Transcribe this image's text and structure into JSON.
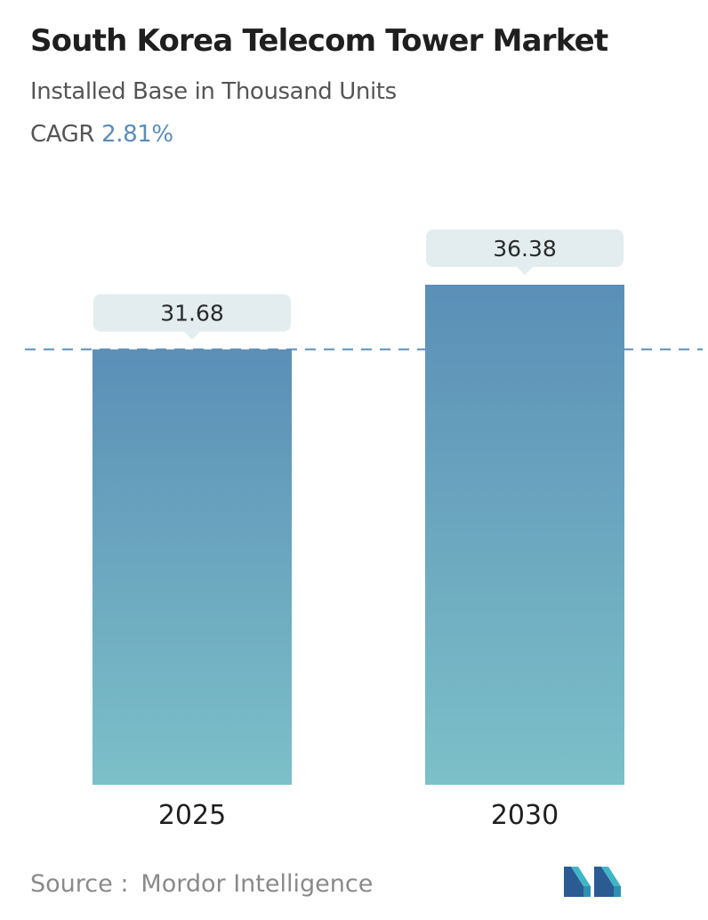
{
  "header": {
    "title": "South Korea Telecom Tower Market",
    "subtitle": "Installed Base in Thousand Units",
    "cagr_label": "CAGR",
    "cagr_value": "2.81%"
  },
  "colors": {
    "bar_top": "#5b8fb7",
    "bar_bottom": "#7cc0c8",
    "callout_bg": "#e3ecef",
    "dashed_line": "#5b8db8",
    "cagr_accent": "#5b8db8"
  },
  "chart_data": {
    "type": "bar",
    "categories": [
      "2025",
      "2030"
    ],
    "values": [
      31.68,
      36.38
    ],
    "value_labels": [
      "31.68",
      "36.38"
    ],
    "title": "South Korea Telecom Tower Market",
    "subtitle": "Installed Base in Thousand Units",
    "xlabel": "",
    "ylabel": "",
    "reference_line": "dashed line at the 2025 value",
    "grid": false,
    "legend": "none"
  },
  "footer": {
    "source_label": "Source :",
    "source_name": "Mordor Intelligence",
    "logo_icon": "mordor-intelligence-logo-icon"
  }
}
